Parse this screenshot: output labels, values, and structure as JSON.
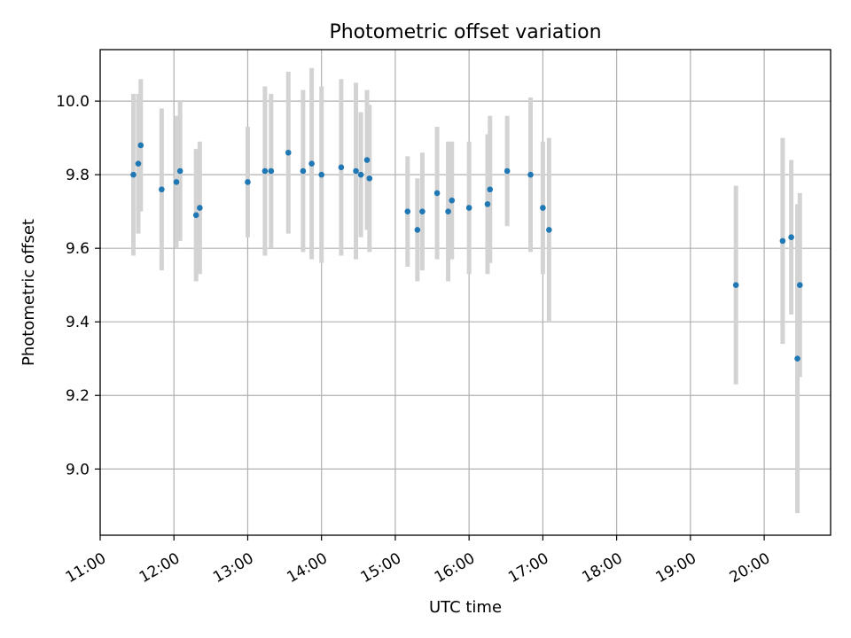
{
  "chart_data": {
    "type": "scatter",
    "title": "Photometric offset variation",
    "xlabel": "UTC time",
    "ylabel": "Photometric offset",
    "x_tick_labels": [
      "11:00",
      "12:00",
      "13:00",
      "14:00",
      "15:00",
      "16:00",
      "17:00",
      "18:00",
      "19:00",
      "20:00"
    ],
    "y_tick_labels": [
      "9.0",
      "9.2",
      "9.4",
      "9.6",
      "9.8",
      "10.0"
    ],
    "y_ticks": [
      9.0,
      9.2,
      9.4,
      9.6,
      9.8,
      10.0
    ],
    "xlim": [
      "11:00",
      "20:54"
    ],
    "ylim": [
      8.82,
      10.14
    ],
    "grid": true,
    "colors": {
      "point": "#1f77b4",
      "errorbar": "#d3d3d3"
    },
    "points": [
      {
        "x": "11:27",
        "y": 9.8,
        "err": 0.22
      },
      {
        "x": "11:31",
        "y": 9.83,
        "err": 0.19
      },
      {
        "x": "11:33",
        "y": 9.88,
        "err": 0.18
      },
      {
        "x": "11:50",
        "y": 9.76,
        "err": 0.22
      },
      {
        "x": "12:02",
        "y": 9.78,
        "err": 0.18
      },
      {
        "x": "12:05",
        "y": 9.81,
        "err": 0.19
      },
      {
        "x": "12:18",
        "y": 9.69,
        "err": 0.18
      },
      {
        "x": "12:21",
        "y": 9.71,
        "err": 0.18
      },
      {
        "x": "13:00",
        "y": 9.78,
        "err": 0.15
      },
      {
        "x": "13:14",
        "y": 9.81,
        "err": 0.23
      },
      {
        "x": "13:19",
        "y": 9.81,
        "err": 0.21
      },
      {
        "x": "13:33",
        "y": 9.86,
        "err": 0.22
      },
      {
        "x": "13:45",
        "y": 9.81,
        "err": 0.22
      },
      {
        "x": "13:52",
        "y": 9.83,
        "err": 0.26
      },
      {
        "x": "14:00",
        "y": 9.8,
        "err": 0.24
      },
      {
        "x": "14:16",
        "y": 9.82,
        "err": 0.24
      },
      {
        "x": "14:28",
        "y": 9.81,
        "err": 0.24
      },
      {
        "x": "14:32",
        "y": 9.8,
        "err": 0.17
      },
      {
        "x": "14:37",
        "y": 9.84,
        "err": 0.19
      },
      {
        "x": "14:39",
        "y": 9.79,
        "err": 0.2
      },
      {
        "x": "15:10",
        "y": 9.7,
        "err": 0.15
      },
      {
        "x": "15:18",
        "y": 9.65,
        "err": 0.14
      },
      {
        "x": "15:22",
        "y": 9.7,
        "err": 0.16
      },
      {
        "x": "15:34",
        "y": 9.75,
        "err": 0.18
      },
      {
        "x": "15:43",
        "y": 9.7,
        "err": 0.19
      },
      {
        "x": "15:46",
        "y": 9.73,
        "err": 0.16
      },
      {
        "x": "16:00",
        "y": 9.71,
        "err": 0.18
      },
      {
        "x": "16:15",
        "y": 9.72,
        "err": 0.19
      },
      {
        "x": "16:17",
        "y": 9.76,
        "err": 0.2
      },
      {
        "x": "16:31",
        "y": 9.81,
        "err": 0.15
      },
      {
        "x": "16:50",
        "y": 9.8,
        "err": 0.21
      },
      {
        "x": "17:00",
        "y": 9.71,
        "err": 0.18
      },
      {
        "x": "17:05",
        "y": 9.65,
        "err": 0.25
      },
      {
        "x": "19:37",
        "y": 9.5,
        "err": 0.27
      },
      {
        "x": "20:15",
        "y": 9.62,
        "err": 0.28
      },
      {
        "x": "20:22",
        "y": 9.63,
        "err": 0.21
      },
      {
        "x": "20:27",
        "y": 9.3,
        "err": 0.42
      },
      {
        "x": "20:29",
        "y": 9.5,
        "err": 0.25
      }
    ]
  }
}
